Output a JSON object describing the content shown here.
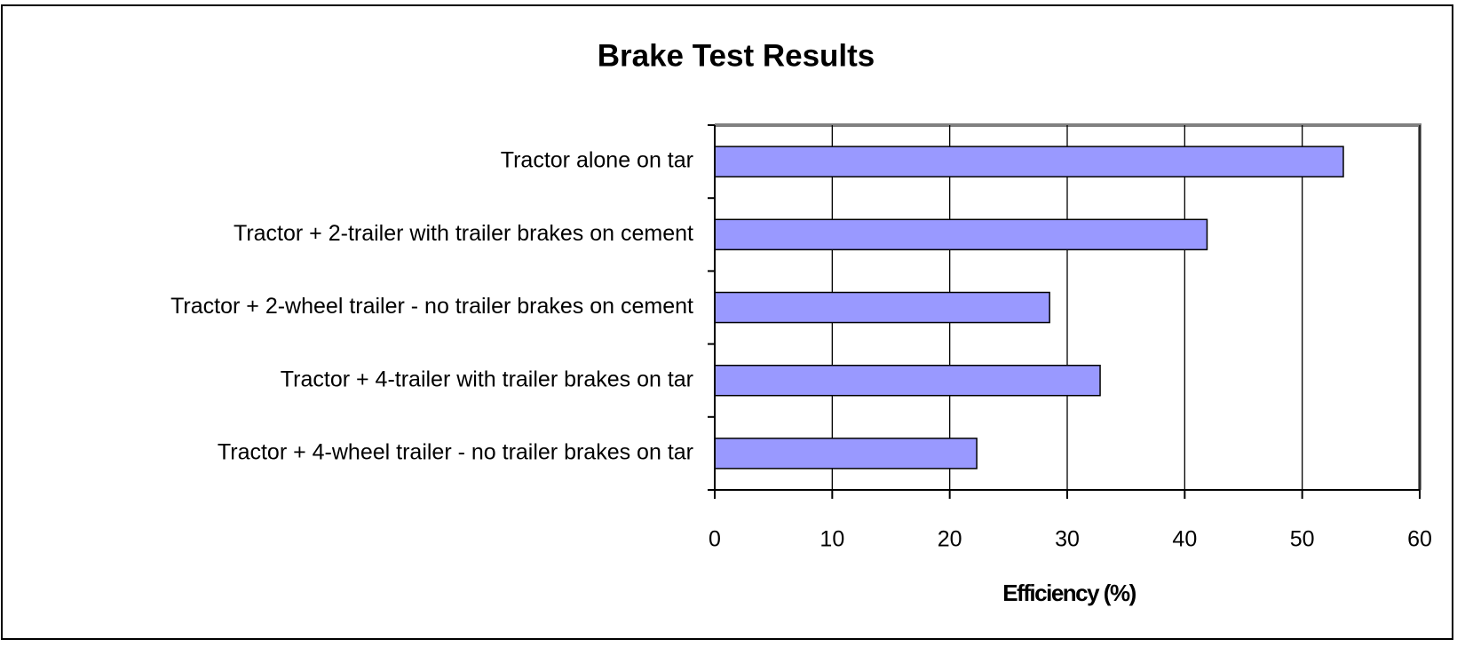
{
  "chart_data": {
    "type": "bar",
    "orientation": "horizontal",
    "title": "Brake Test Results",
    "x_label": "Efficiency (%)",
    "categories": [
      "Tractor alone on tar",
      "Tractor + 2-trailer with trailer brakes on cement",
      "Tractor + 2-wheel trailer - no trailer brakes on cement",
      "Tractor + 4-trailer with trailer brakes on tar",
      "Tractor + 4-wheel trailer - no trailer brakes on tar"
    ],
    "values": [
      53.5,
      41.9,
      28.5,
      32.8,
      22.3
    ],
    "color": "#9999ff",
    "xlim": [
      0,
      60
    ],
    "xticks": [
      0,
      10,
      20,
      30,
      40,
      50,
      60
    ],
    "grid": true
  }
}
